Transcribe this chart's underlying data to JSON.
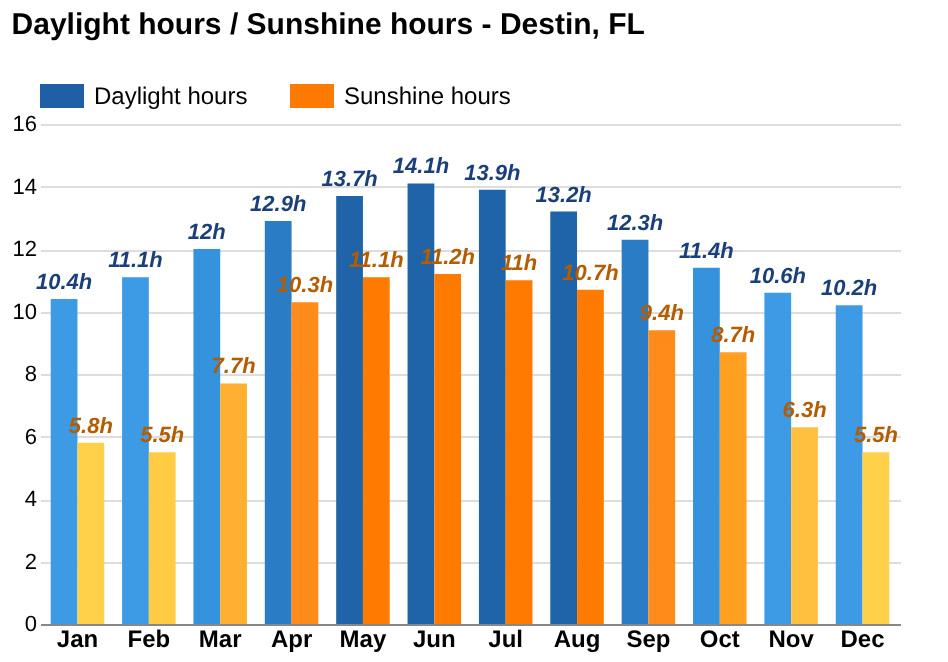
{
  "chart_data": {
    "type": "bar",
    "title": "Daylight hours / Sunshine hours - Destin, FL",
    "categories": [
      "Jan",
      "Feb",
      "Mar",
      "Apr",
      "May",
      "Jun",
      "Jul",
      "Aug",
      "Sep",
      "Oct",
      "Nov",
      "Dec"
    ],
    "series": [
      {
        "name": "Daylight hours",
        "color": "#1f5fa6",
        "colors": [
          "#3d9be6",
          "#3d9be6",
          "#3592dc",
          "#2a7cc4",
          "#1f64a8",
          "#1f64a8",
          "#1f64a8",
          "#1f64a8",
          "#2a7cc4",
          "#3592dc",
          "#3d9be6",
          "#3d9be6"
        ],
        "values": [
          10.4,
          11.1,
          12,
          12.9,
          13.7,
          14.1,
          13.9,
          13.2,
          12.3,
          11.4,
          10.6,
          10.2
        ],
        "value_labels": [
          "10.4h",
          "11.1h",
          "12h",
          "12.9h",
          "13.7h",
          "14.1h",
          "13.9h",
          "13.2h",
          "12.3h",
          "11.4h",
          "10.6h",
          "10.2h"
        ]
      },
      {
        "name": "Sunshine hours",
        "color": "#ff7a00",
        "colors": [
          "#ffd04a",
          "#ffcc44",
          "#ffb030",
          "#ff8c1a",
          "#ff7a00",
          "#ff7a00",
          "#ff7a00",
          "#ff7a00",
          "#ff8c1a",
          "#ffa020",
          "#ffc040",
          "#ffd04a"
        ],
        "values": [
          5.8,
          5.5,
          7.7,
          10.3,
          11.1,
          11.2,
          11,
          10.7,
          9.4,
          8.7,
          6.3,
          5.5
        ],
        "value_labels": [
          "5.8h",
          "5.5h",
          "7.7h",
          "10.3h",
          "11.1h",
          "11.2h",
          "11h",
          "10.7h",
          "9.4h",
          "8.7h",
          "6.3h",
          "5.5h"
        ]
      }
    ],
    "ylim": [
      0,
      16
    ],
    "yticks": [
      0,
      2,
      4,
      6,
      8,
      10,
      12,
      14,
      16
    ],
    "grid": "y",
    "legend": "top left"
  }
}
